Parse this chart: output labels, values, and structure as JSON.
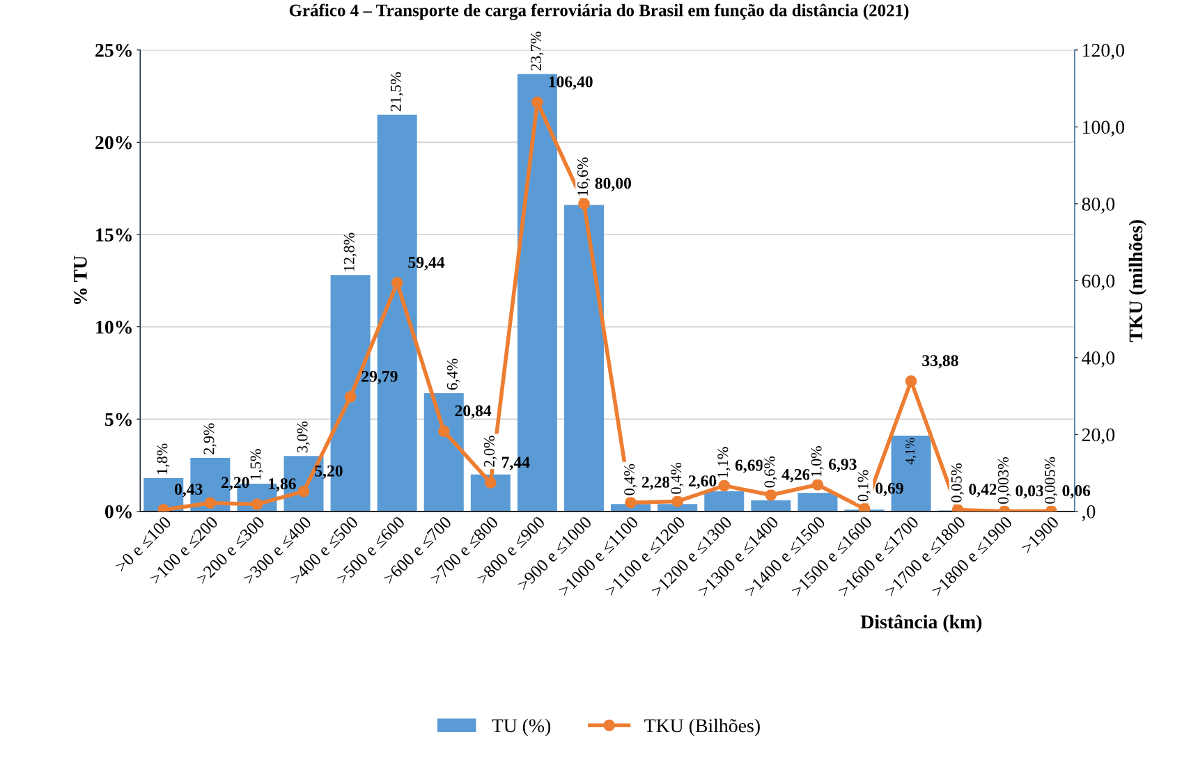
{
  "chart_data": {
    "type": "bar",
    "title": "Gráfico 4 – Transporte de carga ferroviária do Brasil em função da distância (2021)",
    "categories": [
      ">0 e ≤100",
      ">100 e ≤200",
      ">200 e ≤300",
      ">300 e ≤400",
      ">400 e ≤500",
      ">500 e ≤600",
      ">600 e ≤700",
      ">700 e ≤800",
      ">800 e ≤900",
      ">900 e ≤1000",
      ">1000 e ≤1100",
      ">1100 e ≤1200",
      ">1200 e ≤1300",
      ">1300 e ≤1400",
      ">1400 e ≤1500",
      ">1500 e ≤1600",
      ">1600 e ≤1700",
      ">1700 e ≤1800",
      ">1800 e ≤1900",
      ">1900"
    ],
    "xlabel": "Distância (km)",
    "ylabel": "% TU",
    "y2label": "TKU (milhões)",
    "series": [
      {
        "name": "TU (%)",
        "color": "#5b9bd5",
        "values": [
          1.8,
          2.9,
          1.5,
          3.0,
          12.8,
          21.5,
          6.4,
          2.0,
          23.7,
          16.6,
          0.4,
          0.4,
          1.1,
          0.6,
          1.0,
          0.1,
          4.1,
          0.05,
          0.003,
          0.005
        ],
        "value_labels": [
          "1,8%",
          "2,9%",
          "1,5%",
          "3,0%",
          "12,8%",
          "21,5%",
          "6,4%",
          "2,0%",
          "23,7%",
          "16,6%",
          "0,4%",
          "0,4%",
          "1,1%",
          "0,6%",
          "1,0%",
          "0,1%",
          "4,1%",
          "0,05%",
          "0,003%",
          "0,005%"
        ]
      },
      {
        "name": "TKU (Bilhões)",
        "type": "line",
        "axis": "y2",
        "color": "#ed7d31",
        "marker": "circle",
        "line_style": "solid",
        "values": [
          0.43,
          2.2,
          1.86,
          5.2,
          29.79,
          59.44,
          20.84,
          7.44,
          106.4,
          80.0,
          2.28,
          2.6,
          6.69,
          4.26,
          6.93,
          0.69,
          33.88,
          0.42,
          0.03,
          0.06
        ],
        "value_labels": [
          "0,43",
          "2,20",
          "1,86",
          "5,20",
          "29,79",
          "59,44",
          "20,84",
          "7,44",
          "106,40",
          "80,00",
          "2,28",
          "2,60",
          "6,69",
          "4,26",
          "6,93",
          "0,69",
          "33,88",
          "0,42",
          "0,03",
          "0,06"
        ]
      }
    ],
    "ylim": [
      0,
      25
    ],
    "yticks": [
      {
        "value": 0,
        "label": "0%"
      },
      {
        "value": 5,
        "label": "5%"
      },
      {
        "value": 10,
        "label": "10%"
      },
      {
        "value": 15,
        "label": "15%"
      },
      {
        "value": 20,
        "label": "20%"
      },
      {
        "value": 25,
        "label": "25%"
      }
    ],
    "y2lim": [
      0,
      120
    ],
    "y2ticks": [
      {
        "value": 0,
        "label": ",0"
      },
      {
        "value": 20,
        "label": "20,0"
      },
      {
        "value": 40,
        "label": "40,0"
      },
      {
        "value": 60,
        "label": "60,0"
      },
      {
        "value": 80,
        "label": "80,0"
      },
      {
        "value": 100,
        "label": "100,0"
      },
      {
        "value": 120,
        "label": "120,0"
      }
    ],
    "grid": "y",
    "legend": "bottom"
  }
}
